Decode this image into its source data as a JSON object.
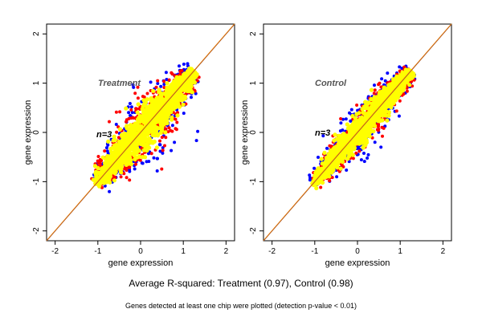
{
  "chart_data": [
    {
      "type": "scatter",
      "panel_label": "Treatment",
      "n_label": "n=3",
      "xlabel": "gene expression",
      "ylabel": "gene expression",
      "xlim": [
        -2.2,
        2.2
      ],
      "ylim": [
        -2.2,
        2.2
      ],
      "xticks": [
        "-2",
        "-1",
        "0",
        "1",
        "2"
      ],
      "yticks": [
        "-2",
        "-1",
        "0",
        "1",
        "2"
      ],
      "reference_line": {
        "slope": 1,
        "intercept": 0
      },
      "cloud": {
        "x_range": [
          -1.05,
          1.25
        ],
        "spread_yellow": 0.12,
        "spread_red": 0.18,
        "spread_blue": 0.22,
        "wide_at": "middle"
      },
      "series": [
        {
          "color": "#0000ff"
        },
        {
          "color": "#ff0000"
        },
        {
          "color": "#ffff00"
        }
      ]
    },
    {
      "type": "scatter",
      "panel_label": "Control",
      "n_label": "n=3",
      "xlabel": "gene expression",
      "ylabel": "gene expression",
      "xlim": [
        -2.2,
        2.2
      ],
      "ylim": [
        -2.2,
        2.2
      ],
      "xticks": [
        "-2",
        "-1",
        "0",
        "1",
        "2"
      ],
      "yticks": [
        "-2",
        "-1",
        "0",
        "1",
        "2"
      ],
      "reference_line": {
        "slope": 1,
        "intercept": 0
      },
      "cloud": {
        "x_range": [
          -1.05,
          1.25
        ],
        "spread_yellow": 0.09,
        "spread_red": 0.13,
        "spread_blue": 0.16,
        "wide_at": "middle"
      },
      "series": [
        {
          "color": "#0000ff"
        },
        {
          "color": "#ff0000"
        },
        {
          "color": "#ffff00"
        }
      ]
    }
  ],
  "caption": {
    "main": "Average R-squared: Treatment (0.97), Control (0.98)",
    "footnote": "Genes detected at least one chip were plotted (detection p-value < 0.01)"
  },
  "colors": {
    "reference_line": "#a0522d",
    "reference_line_2": "#ff8c00",
    "label_gray": "#555555"
  }
}
